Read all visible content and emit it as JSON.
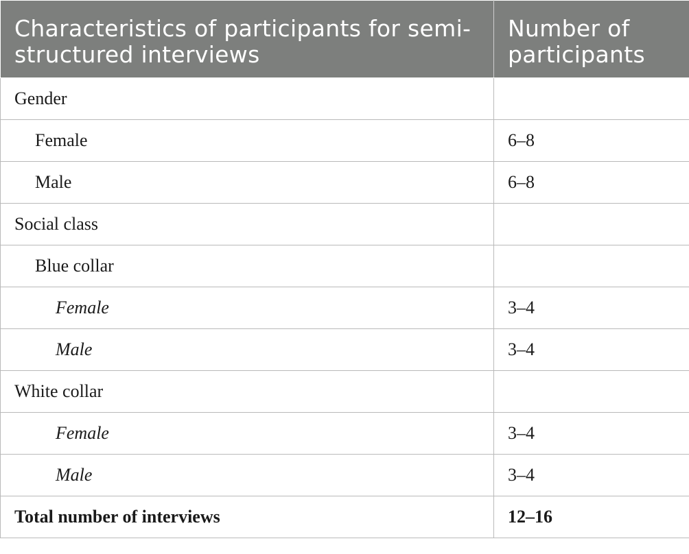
{
  "table": {
    "headers": [
      "Characteristics of participants for semi-structured interviews",
      "Number of participants"
    ],
    "rows": [
      {
        "label": "Gender",
        "value": ""
      },
      {
        "label": "Female",
        "value": "6–8"
      },
      {
        "label": "Male",
        "value": "6–8"
      },
      {
        "label": "Social class",
        "value": ""
      },
      {
        "label": "Blue collar",
        "value": ""
      },
      {
        "label": "Female",
        "value": "3–4"
      },
      {
        "label": "Male",
        "value": "3–4"
      },
      {
        "label": "White collar",
        "value": ""
      },
      {
        "label": "Female",
        "value": "3–4"
      },
      {
        "label": "Male",
        "value": "3–4"
      },
      {
        "label": "Total number of interviews",
        "value": "12–16"
      }
    ]
  },
  "colors": {
    "header_background": "#7d7f7d",
    "header_text": "#ffffff",
    "grid_lines": "#b9b9b9"
  }
}
